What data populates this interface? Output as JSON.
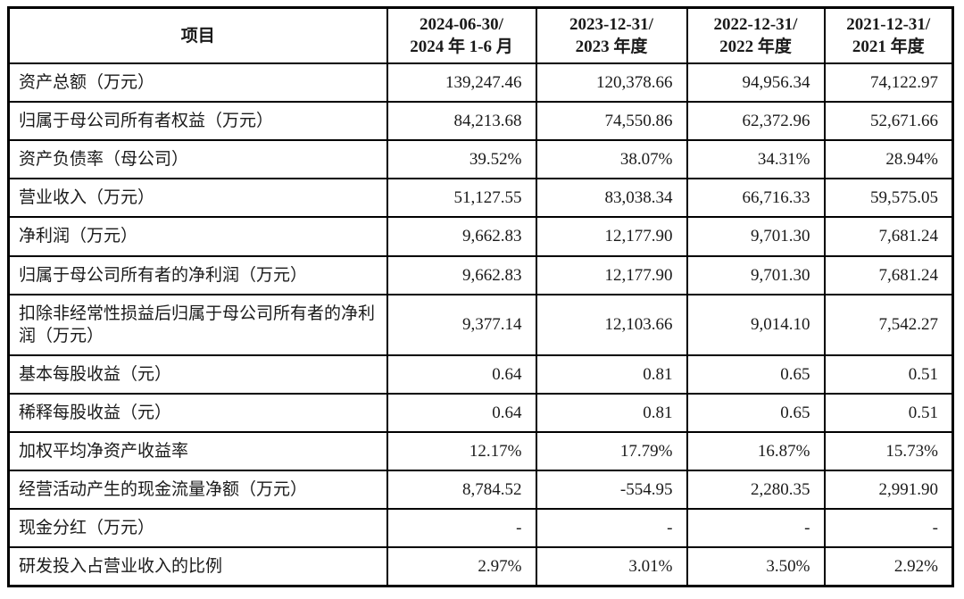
{
  "table": {
    "header": {
      "item_label": "项目",
      "periods": [
        {
          "line1": "2024-06-30/",
          "line2": "2024 年 1-6 月"
        },
        {
          "line1": "2023-12-31/",
          "line2": "2023 年度"
        },
        {
          "line1": "2022-12-31/",
          "line2": "2022 年度"
        },
        {
          "line1": "2021-12-31/",
          "line2": "2021 年度"
        }
      ]
    },
    "rows": [
      {
        "item": "资产总额（万元）",
        "values": [
          "139,247.46",
          "120,378.66",
          "94,956.34",
          "74,122.97"
        ]
      },
      {
        "item": "归属于母公司所有者权益（万元）",
        "values": [
          "84,213.68",
          "74,550.86",
          "62,372.96",
          "52,671.66"
        ]
      },
      {
        "item": "资产负债率（母公司）",
        "values": [
          "39.52%",
          "38.07%",
          "34.31%",
          "28.94%"
        ]
      },
      {
        "item": "营业收入（万元）",
        "values": [
          "51,127.55",
          "83,038.34",
          "66,716.33",
          "59,575.05"
        ]
      },
      {
        "item": "净利润（万元）",
        "values": [
          "9,662.83",
          "12,177.90",
          "9,701.30",
          "7,681.24"
        ]
      },
      {
        "item": "归属于母公司所有者的净利润（万元）",
        "values": [
          "9,662.83",
          "12,177.90",
          "9,701.30",
          "7,681.24"
        ]
      },
      {
        "item": "扣除非经常性损益后归属于母公司所有者的净利润（万元）",
        "values": [
          "9,377.14",
          "12,103.66",
          "9,014.10",
          "7,542.27"
        ]
      },
      {
        "item": "基本每股收益（元）",
        "values": [
          "0.64",
          "0.81",
          "0.65",
          "0.51"
        ]
      },
      {
        "item": "稀释每股收益（元）",
        "values": [
          "0.64",
          "0.81",
          "0.65",
          "0.51"
        ]
      },
      {
        "item": "加权平均净资产收益率",
        "values": [
          "12.17%",
          "17.79%",
          "16.87%",
          "15.73%"
        ]
      },
      {
        "item": "经营活动产生的现金流量净额（万元）",
        "values": [
          "8,784.52",
          "-554.95",
          "2,280.35",
          "2,991.90"
        ]
      },
      {
        "item": "现金分红（万元）",
        "values": [
          "-",
          "-",
          "-",
          "-"
        ]
      },
      {
        "item": "研发投入占营业收入的比例",
        "values": [
          "2.97%",
          "3.01%",
          "3.50%",
          "2.92%"
        ]
      }
    ],
    "colors": {
      "border": "#000000",
      "text": "#1a1a1a",
      "background": "#ffffff"
    }
  }
}
